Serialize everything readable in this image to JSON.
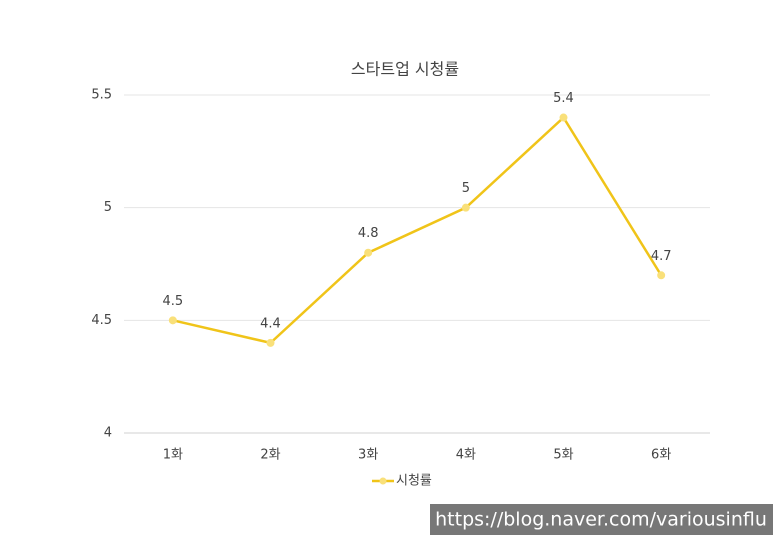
{
  "chart_data": {
    "type": "line",
    "title": "스타트업 시청률",
    "categories": [
      "1화",
      "2화",
      "3화",
      "4화",
      "5화",
      "6화"
    ],
    "series": [
      {
        "name": "시청률",
        "color": "#f0c419",
        "marker_color": "#f9e07a",
        "values": [
          4.5,
          4.4,
          4.8,
          5,
          5.4,
          4.7
        ]
      }
    ],
    "ylim": [
      4,
      5.5
    ],
    "yticks": [
      4,
      4.5,
      5,
      5.5
    ],
    "grid": true,
    "legend": "bottom"
  },
  "watermark": "https://blog.naver.com/variousinflu"
}
